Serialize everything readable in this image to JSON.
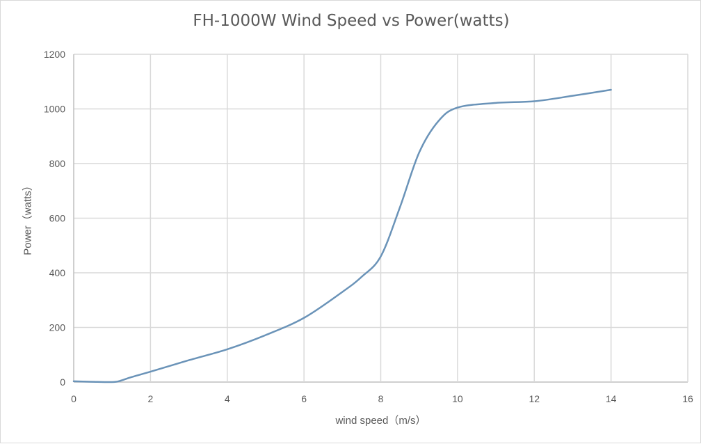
{
  "chart_data": {
    "type": "line",
    "title": "FH-1000W Wind Speed vs Power(watts)",
    "xlabel": "wind speed（m/s）",
    "ylabel": "Power（watts）",
    "xlim": [
      0,
      16
    ],
    "ylim": [
      0,
      1200
    ],
    "xticks": [
      0,
      2,
      4,
      6,
      8,
      10,
      12,
      14,
      16
    ],
    "yticks": [
      0,
      200,
      400,
      600,
      800,
      1000,
      1200
    ],
    "grid": true,
    "legend": "none",
    "series": [
      {
        "name": "Power",
        "color": "#6a93b8",
        "x": [
          0,
          0.5,
          1,
          1.2,
          1.5,
          2,
          3,
          4,
          5,
          6,
          7,
          7.5,
          8,
          8.5,
          9,
          9.5,
          10,
          11,
          12,
          13,
          14
        ],
        "y": [
          3,
          1,
          0,
          4,
          18,
          38,
          80,
          120,
          172,
          235,
          330,
          385,
          460,
          640,
          840,
          955,
          1005,
          1022,
          1028,
          1048,
          1070
        ]
      }
    ]
  }
}
